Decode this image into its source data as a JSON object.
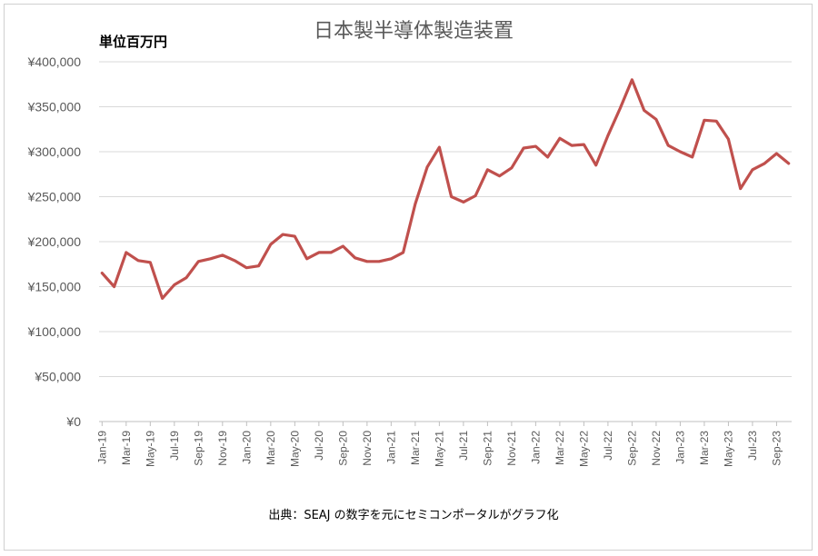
{
  "chart_data": {
    "type": "line",
    "title": "日本製半導体製造装置",
    "unit_label": "単位百万円",
    "source_note": "出典：SEAJ の数字を元にセミコンポータルがグラフ化",
    "ylim": [
      0,
      400000
    ],
    "y_ticks": [
      "¥0",
      "¥50,000",
      "¥100,000",
      "¥150,000",
      "¥200,000",
      "¥250,000",
      "¥300,000",
      "¥350,000",
      "¥400,000"
    ],
    "x_tick_labels": [
      "Jan-19",
      "Mar-19",
      "May-19",
      "Jul-19",
      "Sep-19",
      "Nov-19",
      "Jan-20",
      "Mar-20",
      "May-20",
      "Jul-20",
      "Sep-20",
      "Nov-20",
      "Jan-21",
      "Mar-21",
      "May-21",
      "Jul-21",
      "Sep-21",
      "Nov-21",
      "Jan-22",
      "Mar-22",
      "May-22",
      "Jul-22",
      "Sep-22",
      "Nov-22",
      "Jan-23",
      "Mar-23",
      "May-23",
      "Jul-23",
      "Sep-23"
    ],
    "grid": true,
    "legend": "none",
    "colors": {
      "series": "#c0504d",
      "grid": "#d9d9d9"
    },
    "series": [
      {
        "values": [
          165000,
          150000,
          188000,
          179000,
          177000,
          137000,
          152000,
          160000,
          178000,
          181000,
          185000,
          179000,
          171000,
          173000,
          197000,
          208000,
          206000,
          181000,
          188000,
          188000,
          195000,
          182000,
          178000,
          178000,
          181000,
          188000,
          242000,
          283000,
          305000,
          250000,
          244000,
          251000,
          280000,
          273000,
          282000,
          304000,
          306000,
          294000,
          315000,
          307000,
          308000,
          285000,
          318000,
          348000,
          380000,
          346000,
          336000,
          307000,
          300000,
          294000,
          335000,
          334000,
          314000,
          259000,
          280000,
          287000,
          298000,
          287000
        ]
      }
    ]
  }
}
